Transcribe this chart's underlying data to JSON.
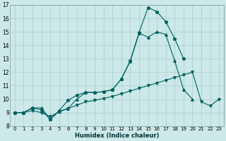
{
  "xlabel": "Humidex (Indice chaleur)",
  "bg_color": "#cce8e8",
  "grid_color": "#aacccc",
  "line_color": "#006060",
  "xlim": [
    -0.5,
    23.5
  ],
  "ylim": [
    8,
    17
  ],
  "xticks": [
    0,
    1,
    2,
    3,
    4,
    5,
    6,
    7,
    8,
    9,
    10,
    11,
    12,
    13,
    14,
    15,
    16,
    17,
    18,
    19,
    20,
    21,
    22,
    23
  ],
  "yticks": [
    8,
    9,
    10,
    11,
    12,
    13,
    14,
    15,
    16,
    17
  ],
  "series_peak_x": [
    0,
    1,
    2,
    3,
    4,
    5,
    6,
    7,
    8,
    9,
    10,
    11,
    12,
    13,
    14,
    15,
    16,
    17,
    18,
    19,
    20
  ],
  "series_peak_y": [
    9.0,
    9.0,
    9.35,
    9.2,
    8.5,
    9.15,
    9.9,
    10.3,
    10.5,
    10.5,
    10.55,
    10.7,
    11.5,
    12.85,
    14.95,
    16.8,
    16.5,
    15.75,
    14.5,
    13.0,
    null
  ],
  "series_mid_x": [
    0,
    1,
    2,
    3,
    4,
    5,
    6,
    7,
    8,
    9,
    10,
    11,
    12,
    13,
    14,
    15,
    16,
    17,
    18,
    19,
    20
  ],
  "series_mid_y": [
    9.0,
    9.0,
    9.35,
    9.35,
    8.5,
    9.1,
    9.3,
    10.0,
    10.5,
    10.5,
    10.55,
    10.7,
    11.5,
    12.8,
    14.9,
    14.6,
    15.0,
    14.8,
    12.85,
    10.7,
    10.0
  ],
  "series_low_x": [
    0,
    1,
    2,
    3,
    4,
    5,
    6,
    7,
    8,
    9,
    10,
    11,
    12,
    13,
    14,
    15,
    16,
    17,
    18,
    19,
    20,
    21,
    22,
    23
  ],
  "series_low_y": [
    9.0,
    9.0,
    9.15,
    9.0,
    8.7,
    9.05,
    9.3,
    9.55,
    9.8,
    9.9,
    10.05,
    10.2,
    10.4,
    10.6,
    10.8,
    11.0,
    11.2,
    11.4,
    11.6,
    11.8,
    12.0,
    9.8,
    9.5,
    10.0
  ]
}
